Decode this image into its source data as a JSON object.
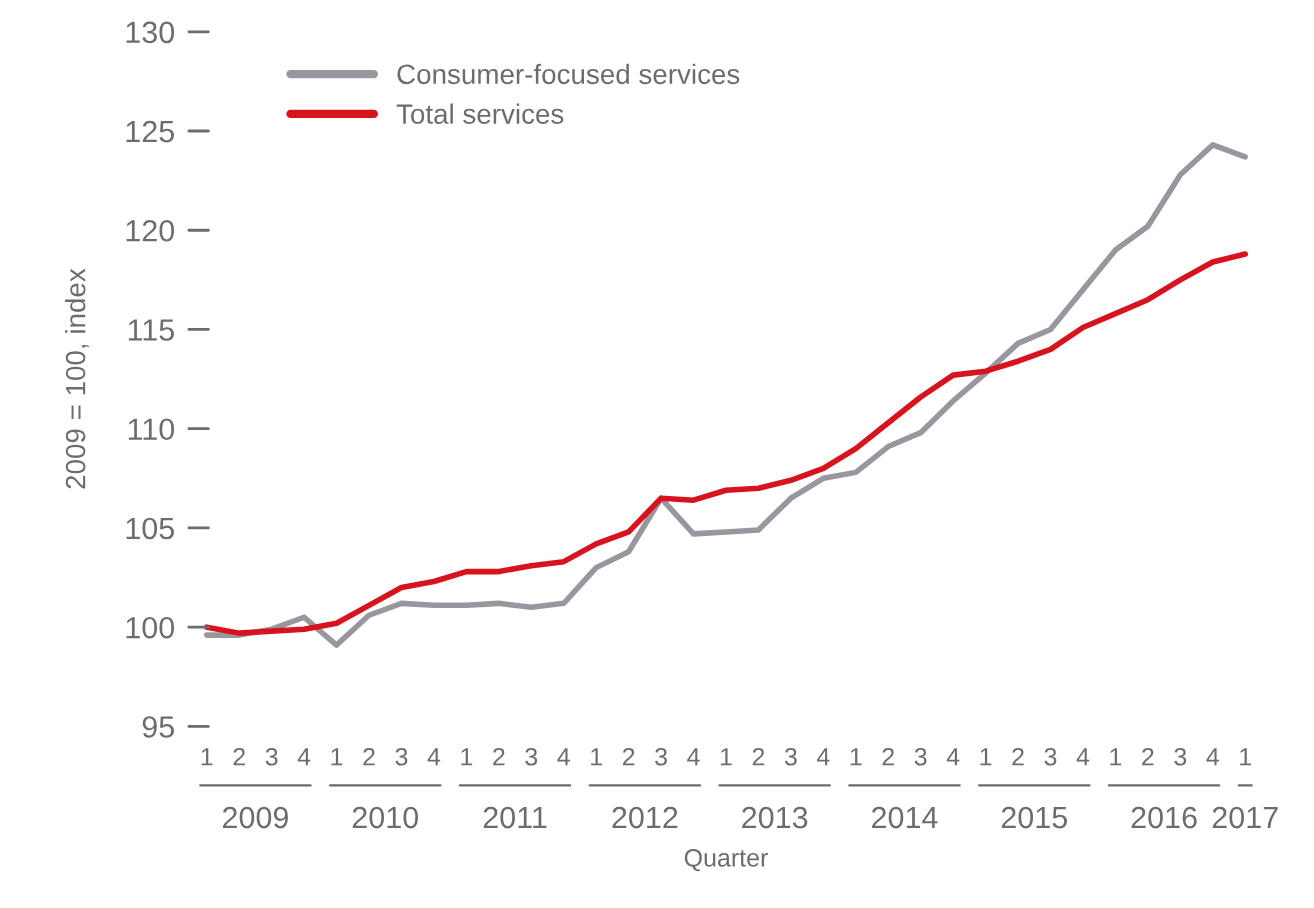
{
  "chart_data": {
    "type": "line",
    "xlabel": "Quarter",
    "ylabel": "2009 = 100, index",
    "categories": [
      "1",
      "2",
      "3",
      "4",
      "1",
      "2",
      "3",
      "4",
      "1",
      "2",
      "3",
      "4",
      "1",
      "2",
      "3",
      "4",
      "1",
      "2",
      "3",
      "4",
      "1",
      "2",
      "3",
      "4",
      "1",
      "2",
      "3",
      "4",
      "1",
      "2",
      "3",
      "4",
      "1"
    ],
    "annotations": [
      "2009",
      "2010",
      "2011",
      "2012",
      "2013",
      "2014",
      "2015",
      "2016",
      "2017"
    ],
    "series": [
      {
        "name": "Consumer-focused services",
        "color": "#9a969f",
        "values": [
          99.6,
          99.6,
          99.9,
          100.5,
          99.1,
          100.6,
          101.2,
          101.1,
          101.1,
          101.2,
          101.0,
          101.2,
          103.0,
          103.8,
          106.5,
          104.7,
          104.8,
          104.9,
          106.5,
          107.5,
          107.8,
          109.1,
          109.8,
          111.4,
          112.8,
          114.3,
          115.0,
          117.0,
          119.0,
          120.2,
          122.8,
          124.3,
          123.7
        ]
      },
      {
        "name": "Total services",
        "color": "#d7141e",
        "values": [
          100.0,
          99.7,
          99.8,
          99.9,
          100.2,
          101.1,
          102.0,
          102.3,
          102.8,
          102.8,
          103.1,
          103.3,
          104.2,
          104.8,
          106.5,
          106.4,
          106.9,
          107.0,
          107.4,
          108.0,
          109.0,
          110.3,
          111.6,
          112.7,
          112.9,
          113.4,
          114.0,
          115.1,
          115.8,
          116.5,
          117.5,
          118.4,
          118.8
        ]
      }
    ],
    "ylim": [
      95,
      130
    ],
    "yticks": [
      95,
      100,
      105,
      110,
      115,
      120,
      125,
      130
    ],
    "grid": false,
    "legend": "top left"
  }
}
